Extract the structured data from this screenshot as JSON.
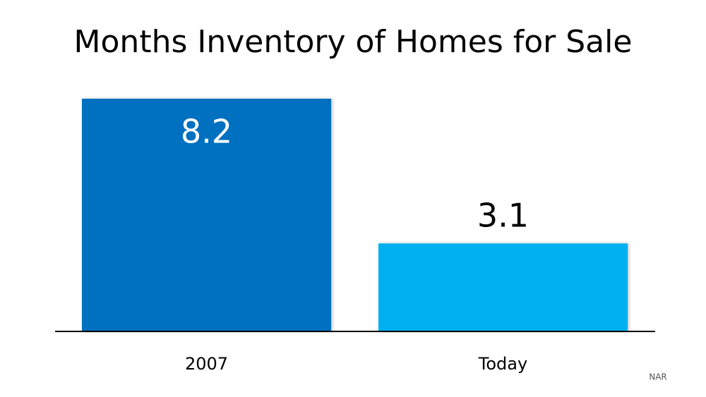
{
  "chart_data": {
    "type": "bar",
    "title": "Months Inventory of Homes for Sale",
    "categories": [
      "2007",
      "Today"
    ],
    "values": [
      8.2,
      3.1
    ],
    "colors": [
      "#0070c0",
      "#00b0f0"
    ],
    "source": "NAR"
  }
}
